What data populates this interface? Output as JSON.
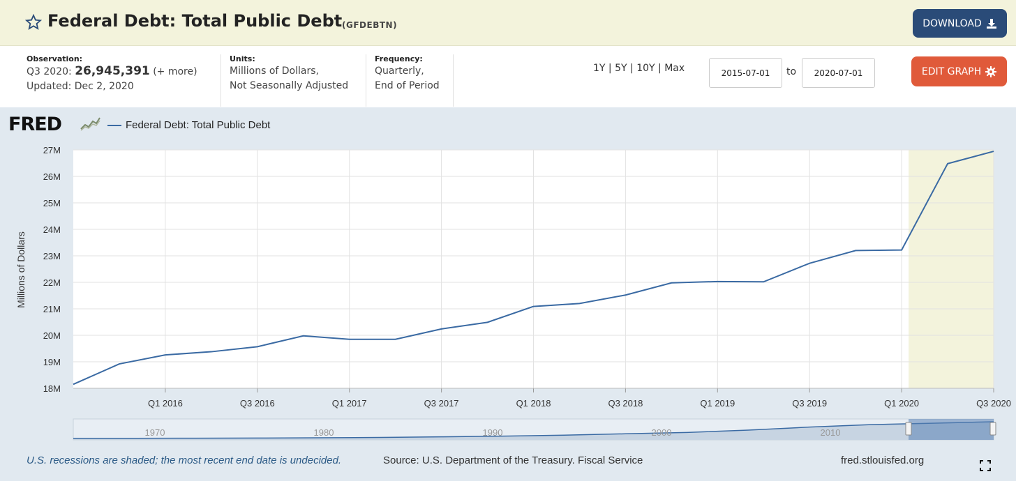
{
  "header": {
    "title": "Federal Debt: Total Public Debt",
    "series_id": "(GFDEBTN)",
    "download_label": "DOWNLOAD"
  },
  "meta": {
    "observation_label": "Observation:",
    "observation_period": "Q3 2020:",
    "observation_value": "26,945,391",
    "observation_more": "(+ more)",
    "updated": "Updated: Dec 2, 2020",
    "units_label": "Units:",
    "units_line1": "Millions of Dollars,",
    "units_line2": "Not Seasonally Adjusted",
    "frequency_label": "Frequency:",
    "frequency_line1": "Quarterly,",
    "frequency_line2": "End of Period"
  },
  "range": {
    "links": [
      "1Y",
      "5Y",
      "10Y",
      "Max"
    ],
    "separator": "|",
    "start_date": "2015-07-01",
    "to_label": "to",
    "end_date": "2020-07-01",
    "edit_label": "EDIT GRAPH"
  },
  "graph": {
    "logo": "FRED",
    "legend_label": "Federal Debt: Total Public Debt",
    "line_color": "#3a6aa3",
    "recession_color": "#f3f3dc",
    "footer_note": "U.S. recessions are shaded; the most recent end date is undecided.",
    "footer_source": "Source: U.S. Department of the Treasury. Fiscal Service",
    "footer_site": "fred.stlouisfed.org"
  },
  "chart_data": {
    "type": "line",
    "title": "",
    "xlabel": "",
    "ylabel": "Millions of Dollars",
    "x": [
      "2015-07-01",
      "2015-10-01",
      "2016-01-01",
      "2016-04-01",
      "2016-07-01",
      "2016-10-01",
      "2017-01-01",
      "2017-04-01",
      "2017-07-01",
      "2017-10-01",
      "2018-01-01",
      "2018-04-01",
      "2018-07-01",
      "2018-10-01",
      "2019-01-01",
      "2019-04-01",
      "2019-07-01",
      "2019-10-01",
      "2020-01-01",
      "2020-04-01",
      "2020-07-01"
    ],
    "series": [
      {
        "name": "Federal Debt: Total Public Debt",
        "values": [
          18150000,
          18920000,
          19260000,
          19380000,
          19570000,
          19980000,
          19850000,
          19850000,
          20240000,
          20490000,
          21090000,
          21200000,
          21520000,
          21980000,
          22030000,
          22020000,
          22720000,
          23200000,
          23220000,
          26480000,
          26945391
        ]
      }
    ],
    "x_ticks": [
      "Q1 2016",
      "Q3 2016",
      "Q1 2017",
      "Q3 2017",
      "Q1 2018",
      "Q3 2018",
      "Q1 2019",
      "Q3 2019",
      "Q1 2020",
      "Q3 2020"
    ],
    "y_ticks": [
      "18M",
      "19M",
      "20M",
      "21M",
      "22M",
      "23M",
      "24M",
      "25M",
      "26M",
      "27M"
    ],
    "ylim": [
      18000000,
      27000000
    ],
    "recession": [
      "2020-01-01",
      "2020-07-01"
    ],
    "grid": true,
    "legend": "top-left",
    "overview": {
      "ticks": [
        "1970",
        "1980",
        "1990",
        "2000",
        "2010"
      ],
      "values": [
        0.01,
        0.01,
        0.015,
        0.025,
        0.04,
        0.06,
        0.1,
        0.14,
        0.2,
        0.28,
        0.36,
        0.5,
        0.68,
        0.83,
        0.91,
        1.0
      ]
    }
  }
}
